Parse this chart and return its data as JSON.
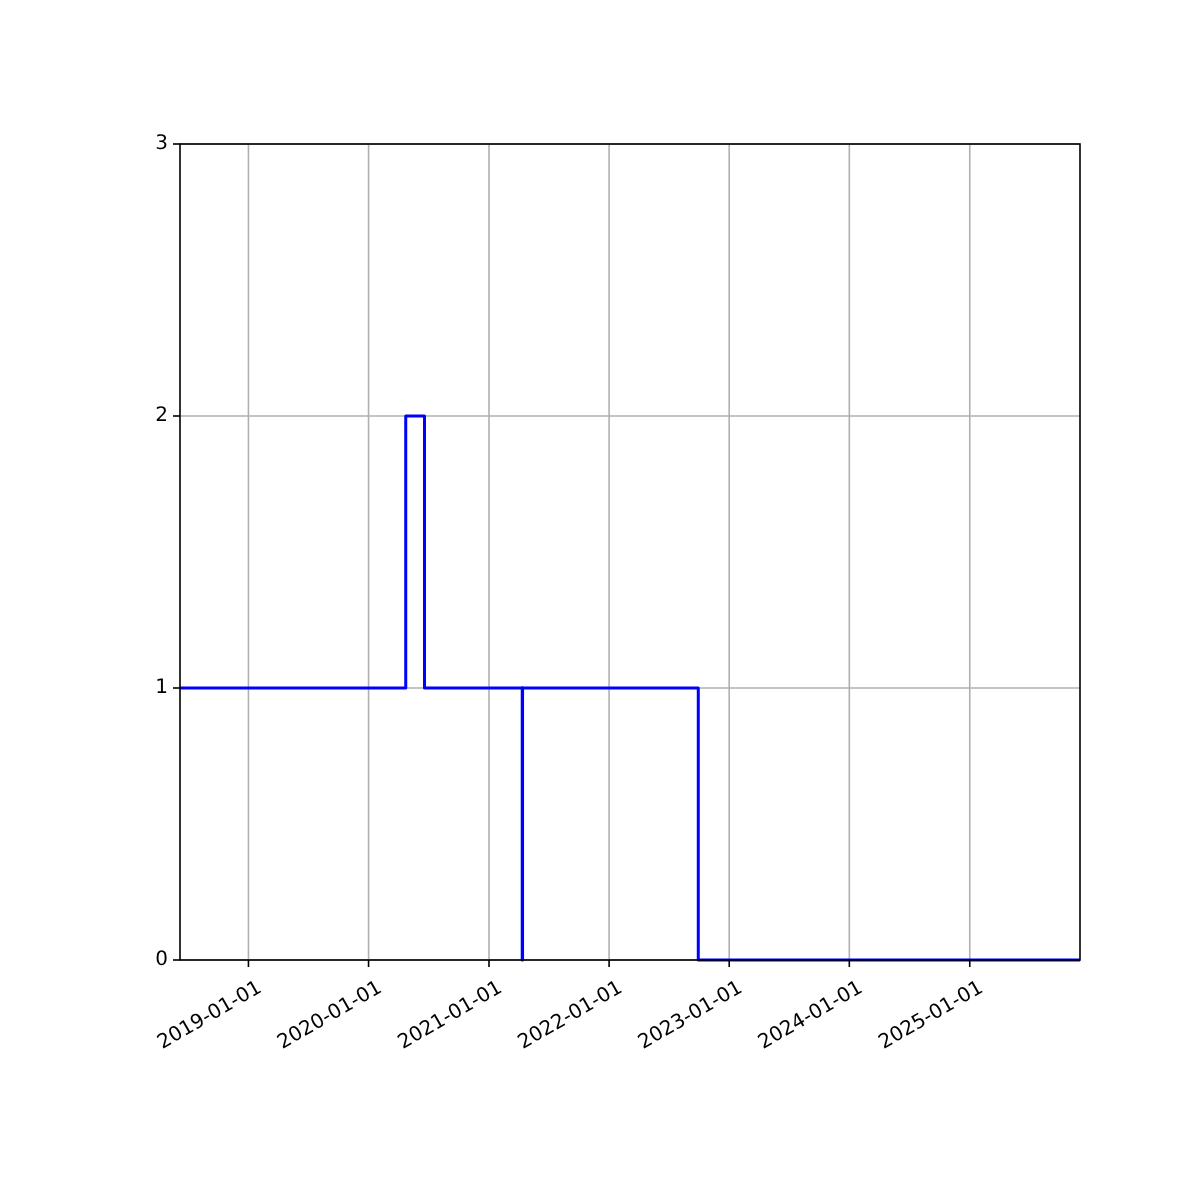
{
  "chart_data": {
    "type": "step",
    "x": [
      "2018-06-07",
      "2020-04-23",
      "2020-06-19",
      "2021-04-12",
      "2021-04-13",
      "2022-09-29",
      "2025-12-02"
    ],
    "series": [
      {
        "color": "#0000ff",
        "values": [
          1,
          2,
          1,
          0,
          1,
          0,
          0
        ]
      }
    ],
    "xlim": [
      "2018-06-07",
      "2025-12-02"
    ],
    "xticks": [
      "2019-01-01",
      "2020-01-01",
      "2021-01-01",
      "2022-01-01",
      "2023-01-01",
      "2024-01-01",
      "2025-01-01"
    ],
    "ylim": [
      0,
      3
    ],
    "yticks": [
      0,
      1,
      2,
      3
    ],
    "grid": true
  }
}
